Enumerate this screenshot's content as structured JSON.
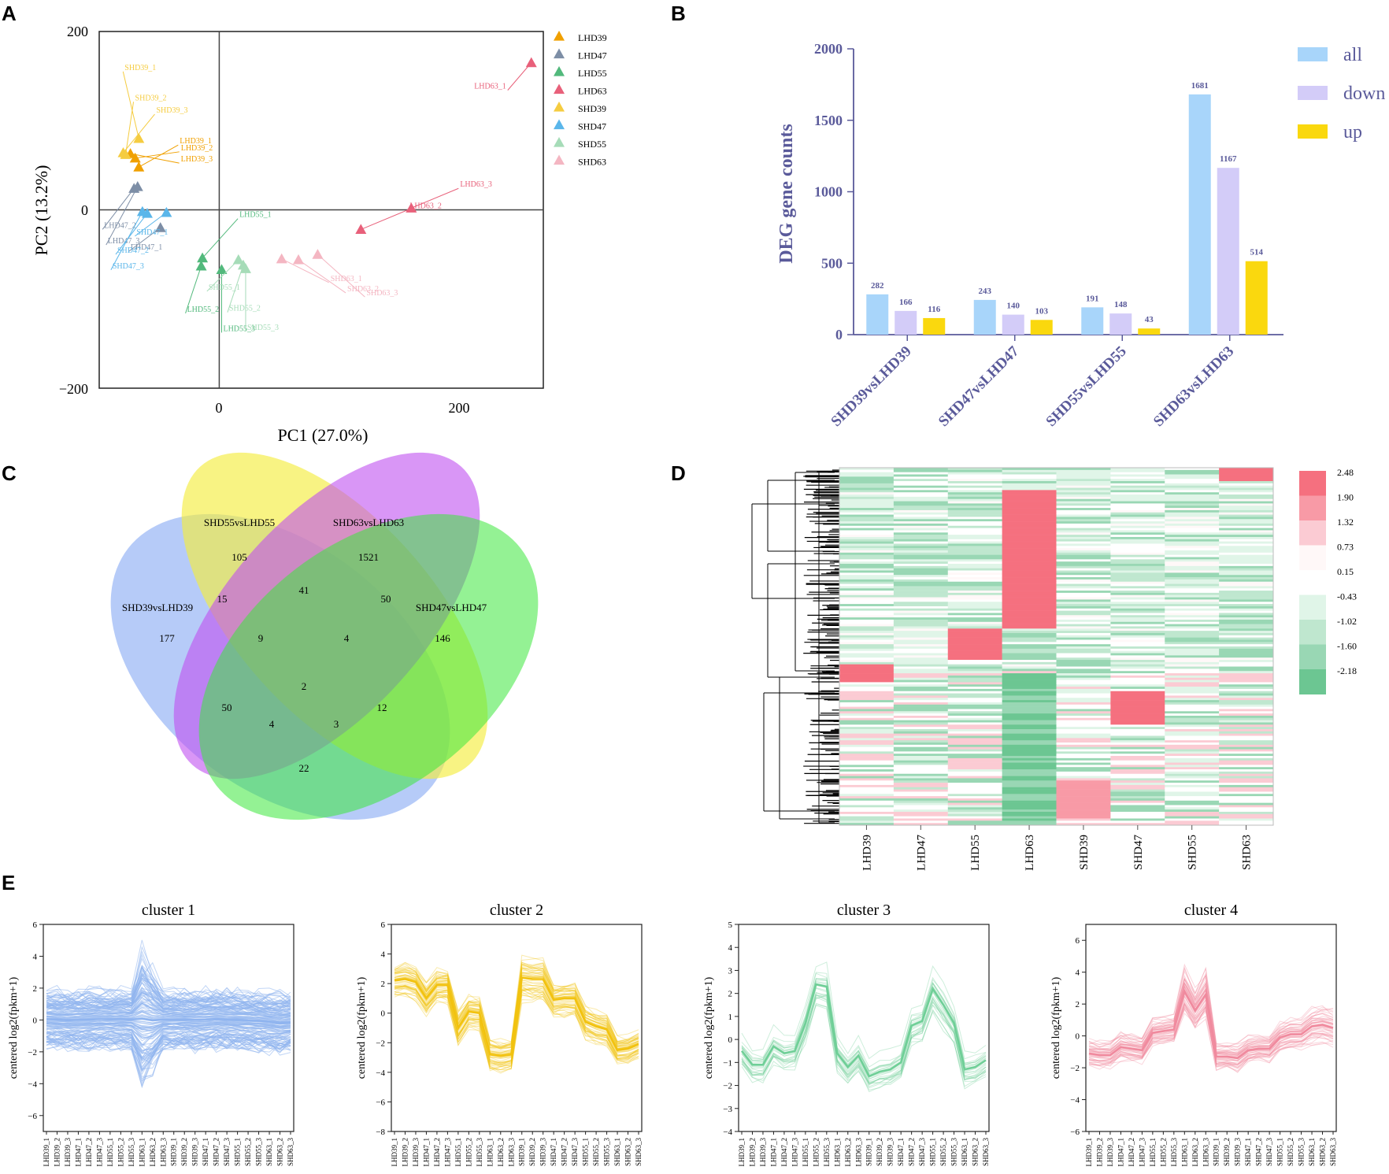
{
  "panels": {
    "a": "A",
    "b": "B",
    "c": "C",
    "d": "D",
    "e": "E"
  },
  "colors": {
    "LHD39": "#f0a000",
    "LHD47": "#7d8ea6",
    "LHD55": "#52b97c",
    "LHD63": "#e8607a",
    "SHD39": "#f5cc40",
    "SHD47": "#5ab6ea",
    "SHD55": "#a6dcb8",
    "SHD63": "#f4b6c2",
    "all": "#a8d5fa",
    "down": "#d3ccf8",
    "up": "#fad80e",
    "axis_b": "#5a5a9a",
    "cluster1": "#8fb4ef",
    "cluster2": "#f2c20f",
    "cluster3": "#6fcf97",
    "cluster4": "#f08a9e"
  },
  "chart_data": [
    {
      "type": "scatter",
      "title": "",
      "xlabel": "PC1 (27.0%)",
      "ylabel": "PC2 (13.2%)",
      "xlim": [
        -100,
        270
      ],
      "ylim": [
        -200,
        200
      ],
      "xticks": [
        "0",
        "200"
      ],
      "yticks": [
        "200",
        "0",
        "−200"
      ],
      "legend": [
        "LHD39",
        "LHD47",
        "LHD55",
        "LHD63",
        "SHD39",
        "SHD47",
        "SHD55",
        "SHD63"
      ],
      "points": [
        {
          "group": "LHD39",
          "label": "LHD39_1",
          "x": -67,
          "y": 48
        },
        {
          "group": "LHD39",
          "label": "LHD39_2",
          "x": -70,
          "y": 58
        },
        {
          "group": "LHD39",
          "label": "LHD39_3",
          "x": -74,
          "y": 63
        },
        {
          "group": "LHD47",
          "label": "LHD47_1",
          "x": -49,
          "y": -20
        },
        {
          "group": "LHD47",
          "label": "LHD47_2",
          "x": -71,
          "y": 24
        },
        {
          "group": "LHD47",
          "label": "LHD47_3",
          "x": -68,
          "y": 26
        },
        {
          "group": "LHD55",
          "label": "LHD55_1",
          "x": -14,
          "y": -54
        },
        {
          "group": "LHD55",
          "label": "LHD55_2",
          "x": -15,
          "y": -63
        },
        {
          "group": "LHD55",
          "label": "LHD55_3",
          "x": 2,
          "y": -67
        },
        {
          "group": "LHD63",
          "label": "LHD63_1",
          "x": 260,
          "y": 165
        },
        {
          "group": "LHD63",
          "label": "LHD63_2",
          "x": 118,
          "y": -22
        },
        {
          "group": "LHD63",
          "label": "LHD63_3",
          "x": 160,
          "y": 2
        },
        {
          "group": "SHD39",
          "label": "SHD39_1",
          "x": -67,
          "y": 80
        },
        {
          "group": "SHD39",
          "label": "SHD39_2",
          "x": -78,
          "y": 62
        },
        {
          "group": "SHD39",
          "label": "SHD39_3",
          "x": -80,
          "y": 64
        },
        {
          "group": "SHD47",
          "label": "SHD47_1",
          "x": -44,
          "y": -3
        },
        {
          "group": "SHD47",
          "label": "SHD47_2",
          "x": -60,
          "y": -4
        },
        {
          "group": "SHD47",
          "label": "SHD47_3",
          "x": -64,
          "y": -2
        },
        {
          "group": "SHD55",
          "label": "SHD55_1",
          "x": 16,
          "y": -56
        },
        {
          "group": "SHD55",
          "label": "SHD55_2",
          "x": 20,
          "y": -62
        },
        {
          "group": "SHD55",
          "label": "SHD55_3",
          "x": 22,
          "y": -66
        },
        {
          "group": "SHD63",
          "label": "SHD63_1",
          "x": 52,
          "y": -55
        },
        {
          "group": "SHD63",
          "label": "SHD63_2",
          "x": 66,
          "y": -56
        },
        {
          "group": "SHD63",
          "label": "SHD63_3",
          "x": 82,
          "y": -50
        }
      ]
    },
    {
      "type": "bar",
      "title": "",
      "ylabel": "DEG gene counts",
      "ylim": [
        0,
        2000
      ],
      "yticks": [
        "0",
        "500",
        "1000",
        "1500",
        "2000"
      ],
      "categories": [
        "SHD39vsLHD39",
        "SHD47vsLHD47",
        "SHD55vsLHD55",
        "SHD63vsLHD63"
      ],
      "series": [
        {
          "name": "all",
          "values": [
            282,
            243,
            191,
            1681
          ]
        },
        {
          "name": "down",
          "values": [
            166,
            140,
            148,
            1167
          ]
        },
        {
          "name": "up",
          "values": [
            116,
            103,
            43,
            514
          ]
        }
      ],
      "value_labels": [
        [
          "282",
          "166",
          "116"
        ],
        [
          "243",
          "140",
          "103"
        ],
        [
          "191",
          "148",
          "43"
        ],
        [
          "1681",
          "1167",
          "514"
        ]
      ]
    },
    {
      "type": "venn",
      "sets": [
        "SHD39vsLHD39",
        "SHD55vsLHD55",
        "SHD63vsLHD63",
        "SHD47vsLHD47"
      ],
      "regions": [
        {
          "name": "only_39",
          "value": "177"
        },
        {
          "name": "only_55",
          "value": "105"
        },
        {
          "name": "only_63",
          "value": "1521"
        },
        {
          "name": "only_47",
          "value": "146"
        },
        {
          "name": "39_55",
          "value": "15"
        },
        {
          "name": "55_63",
          "value": "41"
        },
        {
          "name": "63_47",
          "value": "50"
        },
        {
          "name": "39_55_63",
          "value": "9"
        },
        {
          "name": "55_63_47",
          "value": "4"
        },
        {
          "name": "all4",
          "value": "2"
        },
        {
          "name": "39_63",
          "value": "50"
        },
        {
          "name": "55_47",
          "value": "12"
        },
        {
          "name": "39_63_47",
          "value": "4"
        },
        {
          "name": "39_55_47",
          "value": "3"
        },
        {
          "name": "39_47",
          "value": "22"
        }
      ]
    },
    {
      "type": "heatmap",
      "columns": [
        "LHD39",
        "LHD47",
        "LHD55",
        "LHD63",
        "SHD39",
        "SHD47",
        "SHD55",
        "SHD63"
      ],
      "scale_labels": [
        "2.48",
        "1.90",
        "1.32",
        "0.73",
        "0.15",
        "-0.43",
        "-1.02",
        "-1.60",
        "-2.18"
      ],
      "scale_colors": [
        "#f5707f",
        "#f89aa6",
        "#fbcbd3",
        "#fff8f8",
        "#ffffff",
        "#e0f5e8",
        "#bfe7cf",
        "#99d7b4",
        "#6cc692"
      ]
    },
    {
      "type": "line",
      "ylabel": "centered log2(fpkm+1)",
      "x": [
        "LHD39_1",
        "LHD39_2",
        "LHD39_3",
        "LHD47_1",
        "LHD47_2",
        "LHD47_3",
        "LHD55_1",
        "LHD55_2",
        "LHD55_3",
        "LHD63_1",
        "LHD63_2",
        "LHD63_3",
        "SHD39_1",
        "SHD39_2",
        "SHD39_3",
        "SHD47_1",
        "SHD47_2",
        "SHD47_3",
        "SHD55_1",
        "SHD55_2",
        "SHD55_3",
        "SHD63_1",
        "SHD63_2",
        "SHD63_3"
      ],
      "clusters": [
        {
          "title": "cluster 1",
          "ylim": [
            -7,
            6
          ],
          "yticks": [
            "6",
            "4",
            "2",
            "0",
            "−2",
            "−4",
            "−6"
          ],
          "mean": [
            0.05,
            0.02,
            -0.02,
            0.0,
            0.02,
            0.05,
            0.04,
            0.06,
            0.02,
            0.08,
            -0.03,
            0.02,
            0.02,
            0.03,
            0.0,
            0.02,
            0.06,
            0.03,
            0.01,
            -0.02,
            -0.05,
            -0.1,
            -0.2,
            -0.15
          ],
          "spread": [
            2.0,
            2.0,
            2.0,
            2.0,
            2.0,
            2.0,
            2.0,
            2.0,
            2.0,
            4.5,
            3.5,
            2.0,
            2.0,
            2.0,
            2.0,
            2.0,
            2.0,
            2.0,
            2.0,
            2.0,
            2.0,
            2.0,
            2.0,
            2.0
          ]
        },
        {
          "title": "cluster 2",
          "ylim": [
            -8,
            6
          ],
          "yticks": [
            "6",
            "4",
            "2",
            "0",
            "−2",
            "−4",
            "−6",
            "−8"
          ],
          "mean": [
            2.2,
            2.3,
            2.1,
            1.0,
            1.9,
            1.9,
            -1.0,
            0.1,
            0.0,
            -2.8,
            -2.9,
            -2.8,
            2.4,
            2.3,
            2.3,
            0.9,
            1.0,
            1.0,
            -0.6,
            -0.9,
            -1.1,
            -2.5,
            -2.4,
            -2.1
          ],
          "spread": [
            1.2,
            1.2,
            1.2,
            1.2,
            1.2,
            1.2,
            1.2,
            1.2,
            1.2,
            1.2,
            1.2,
            1.2,
            1.6,
            1.6,
            1.6,
            1.2,
            1.2,
            1.2,
            1.2,
            1.2,
            1.2,
            1.0,
            1.0,
            1.0
          ]
        },
        {
          "title": "cluster 3",
          "ylim": [
            -4,
            5
          ],
          "yticks": [
            "5",
            "4",
            "3",
            "2",
            "1",
            "0",
            "−1",
            "−2",
            "−3",
            "−4"
          ],
          "mean": [
            -0.5,
            -1.1,
            -1.1,
            -0.3,
            -0.6,
            -0.5,
            0.7,
            2.4,
            2.3,
            -0.6,
            -1.2,
            -0.7,
            -1.6,
            -1.4,
            -1.3,
            -1.0,
            0.6,
            0.8,
            2.2,
            1.5,
            0.7,
            -1.3,
            -1.2,
            -0.9
          ],
          "spread": [
            0.9,
            0.9,
            0.9,
            0.9,
            0.9,
            0.9,
            1.0,
            1.2,
            1.2,
            0.9,
            0.9,
            0.9,
            0.9,
            0.9,
            0.9,
            0.9,
            1.0,
            1.0,
            1.2,
            1.2,
            1.0,
            0.9,
            0.9,
            0.9
          ]
        },
        {
          "title": "cluster 4",
          "ylim": [
            -6,
            7
          ],
          "yticks": [
            "6",
            "4",
            "2",
            "0",
            "−2",
            "−4",
            "−6"
          ],
          "mean": [
            -1.1,
            -1.2,
            -1.2,
            -0.7,
            -0.8,
            -0.9,
            0.2,
            0.3,
            0.4,
            2.8,
            1.6,
            2.6,
            -1.3,
            -1.3,
            -1.4,
            -0.9,
            -0.8,
            -0.8,
            -0.1,
            0.1,
            0.1,
            0.6,
            0.7,
            0.5
          ],
          "spread": [
            0.9,
            0.9,
            0.9,
            0.9,
            0.9,
            0.9,
            0.9,
            0.9,
            0.9,
            1.6,
            1.4,
            1.6,
            0.9,
            0.9,
            0.9,
            0.9,
            0.9,
            0.9,
            1.0,
            1.0,
            1.0,
            1.2,
            1.2,
            1.2
          ]
        }
      ]
    }
  ]
}
